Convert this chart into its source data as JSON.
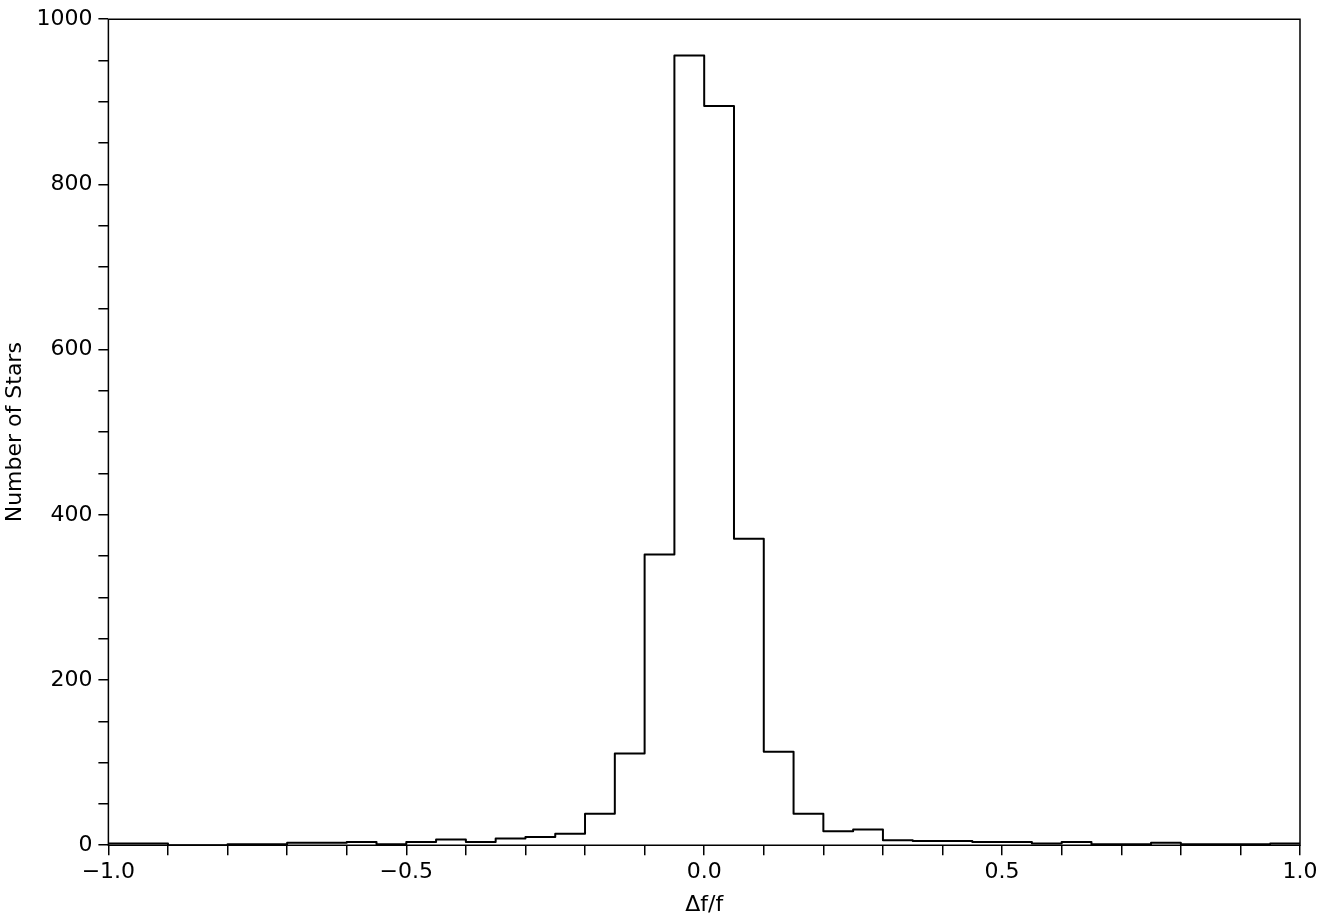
{
  "chart_data": {
    "type": "histogram",
    "xlabel": "Δf/f",
    "ylabel": "Number of Stars",
    "color": "#000000",
    "bins": [
      -1.0,
      -0.95,
      -0.9,
      -0.85,
      -0.8,
      -0.75,
      -0.7,
      -0.65,
      -0.6,
      -0.55,
      -0.5,
      -0.45,
      -0.4,
      -0.35,
      -0.3,
      -0.25,
      -0.2,
      -0.15,
      -0.1,
      -0.05,
      0.0,
      0.05,
      0.1,
      0.15,
      0.2,
      0.25,
      0.3,
      0.35,
      0.4,
      0.45,
      0.5,
      0.55,
      0.6,
      0.65,
      0.7,
      0.75,
      0.8,
      0.85,
      0.9,
      0.95,
      1.0
    ],
    "values": [
      2,
      2,
      0,
      0,
      1,
      1,
      3,
      3,
      4,
      1,
      4,
      7,
      4,
      8,
      10,
      14,
      38,
      111,
      352,
      956,
      895,
      371,
      113,
      38,
      17,
      19,
      6,
      5,
      5,
      4,
      4,
      2,
      4,
      1,
      1,
      3,
      1,
      1,
      1,
      2
    ],
    "xlim": [
      -1.0,
      1.0
    ],
    "xticks": [
      {
        "value": -1.0,
        "label": "−1.0"
      },
      {
        "value": -0.9,
        "label": null
      },
      {
        "value": -0.8,
        "label": null
      },
      {
        "value": -0.7,
        "label": null
      },
      {
        "value": -0.6,
        "label": null
      },
      {
        "value": -0.5,
        "label": "−0.5"
      },
      {
        "value": -0.4,
        "label": null
      },
      {
        "value": -0.3,
        "label": null
      },
      {
        "value": -0.2,
        "label": null
      },
      {
        "value": -0.1,
        "label": null
      },
      {
        "value": 0.0,
        "label": "0.0"
      },
      {
        "value": 0.1,
        "label": null
      },
      {
        "value": 0.2,
        "label": null
      },
      {
        "value": 0.3,
        "label": null
      },
      {
        "value": 0.4,
        "label": null
      },
      {
        "value": 0.5,
        "label": "0.5"
      },
      {
        "value": 0.6,
        "label": null
      },
      {
        "value": 0.7,
        "label": null
      },
      {
        "value": 0.8,
        "label": null
      },
      {
        "value": 0.9,
        "label": null
      },
      {
        "value": 1.0,
        "label": "1.0"
      }
    ],
    "ylim": [
      0,
      1000
    ],
    "yticks": [
      0,
      {
        "value": 50,
        "label": null
      },
      {
        "value": 100,
        "label": null
      },
      {
        "value": 150,
        "label": null
      },
      200,
      {
        "value": 250,
        "label": null
      },
      {
        "value": 300,
        "label": null
      },
      {
        "value": 350,
        "label": null
      },
      400,
      {
        "value": 450,
        "label": null
      },
      {
        "value": 500,
        "label": null
      },
      {
        "value": 550,
        "label": null
      },
      600,
      {
        "value": 650,
        "label": null
      },
      {
        "value": 700,
        "label": null
      },
      {
        "value": 750,
        "label": null
      },
      800,
      {
        "value": 850,
        "label": null
      },
      {
        "value": 900,
        "label": null
      },
      {
        "value": 950,
        "label": null
      },
      1000
    ],
    "grid": false,
    "legend": false
  }
}
